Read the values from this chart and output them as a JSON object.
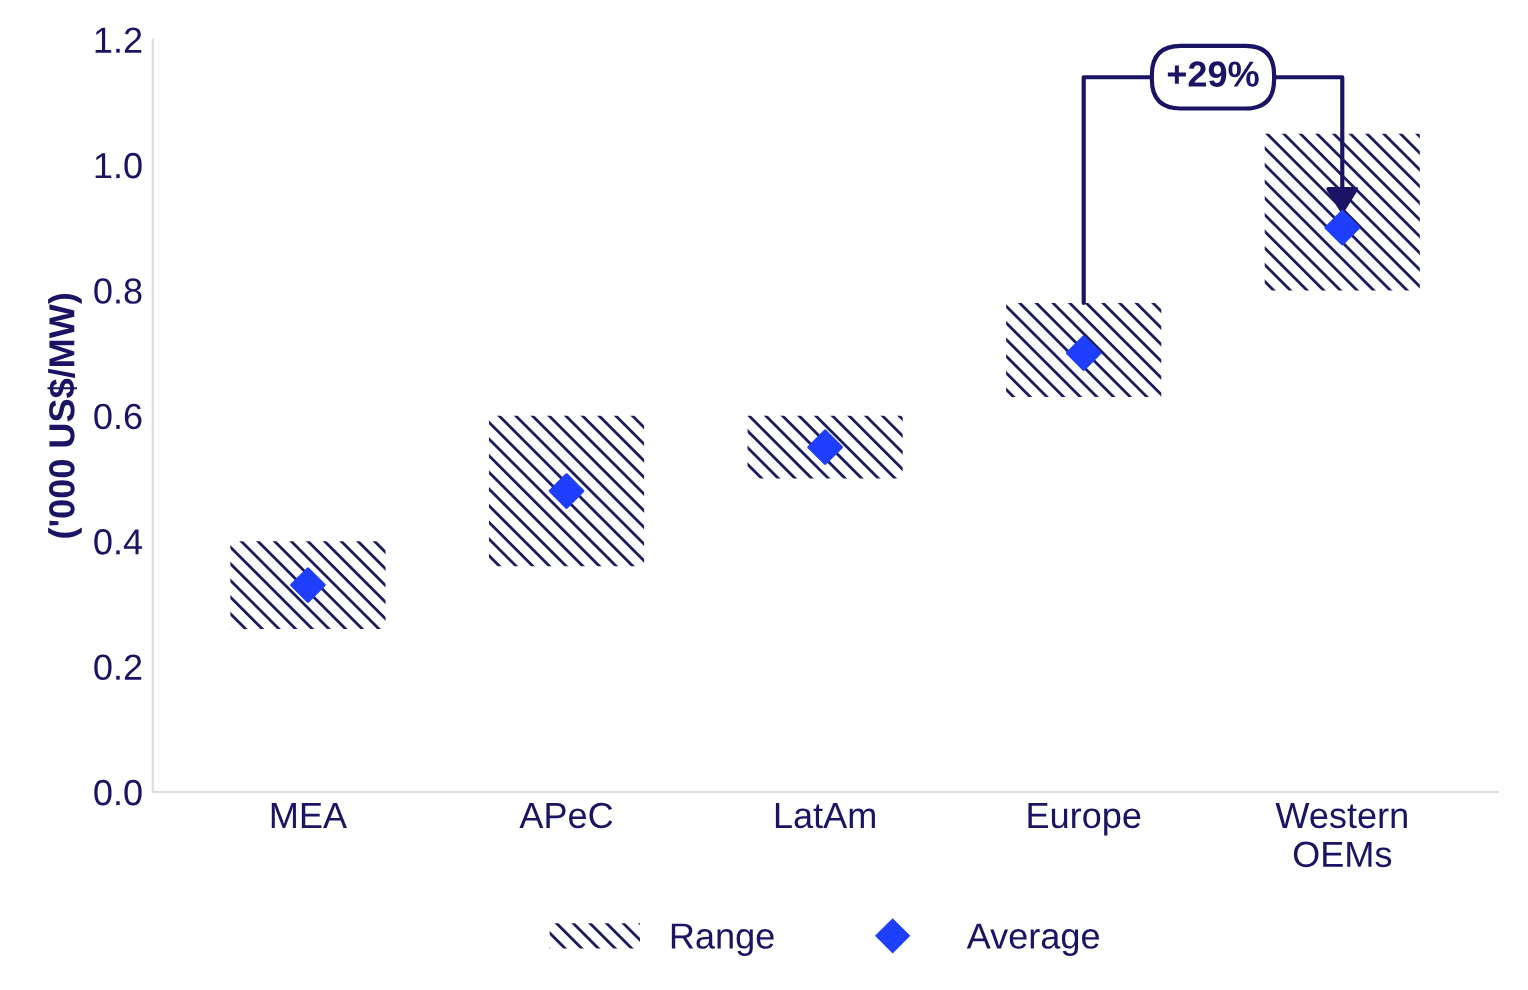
{
  "chart_data": {
    "type": "bar",
    "ylabel": "('000 US$/MW)",
    "categories": [
      "MEA",
      "APeC",
      "LatAm",
      "Europe",
      "Western\nOEMs"
    ],
    "ylim": [
      0,
      1.2
    ],
    "yticks": [
      {
        "value": 0,
        "label": "0.0"
      },
      0.2,
      0.4,
      0.6,
      0.8,
      {
        "value": 1,
        "label": "1.0"
      },
      1.2
    ],
    "series": [
      {
        "name": "Range",
        "color": "#1b1b5e",
        "base": [
          0.26,
          0.36,
          0.5,
          0.63,
          0.8
        ],
        "values": [
          0.14,
          0.24,
          0.1,
          0.15,
          0.25
        ]
      },
      {
        "name": "Average",
        "type": "scatter",
        "color": "#1f3fff",
        "marker": "diamond",
        "values": [
          0.33,
          0.48,
          0.55,
          0.7,
          0.9
        ]
      }
    ],
    "annotations": [
      "+29%"
    ],
    "grid": false,
    "legend": "bottom"
  }
}
